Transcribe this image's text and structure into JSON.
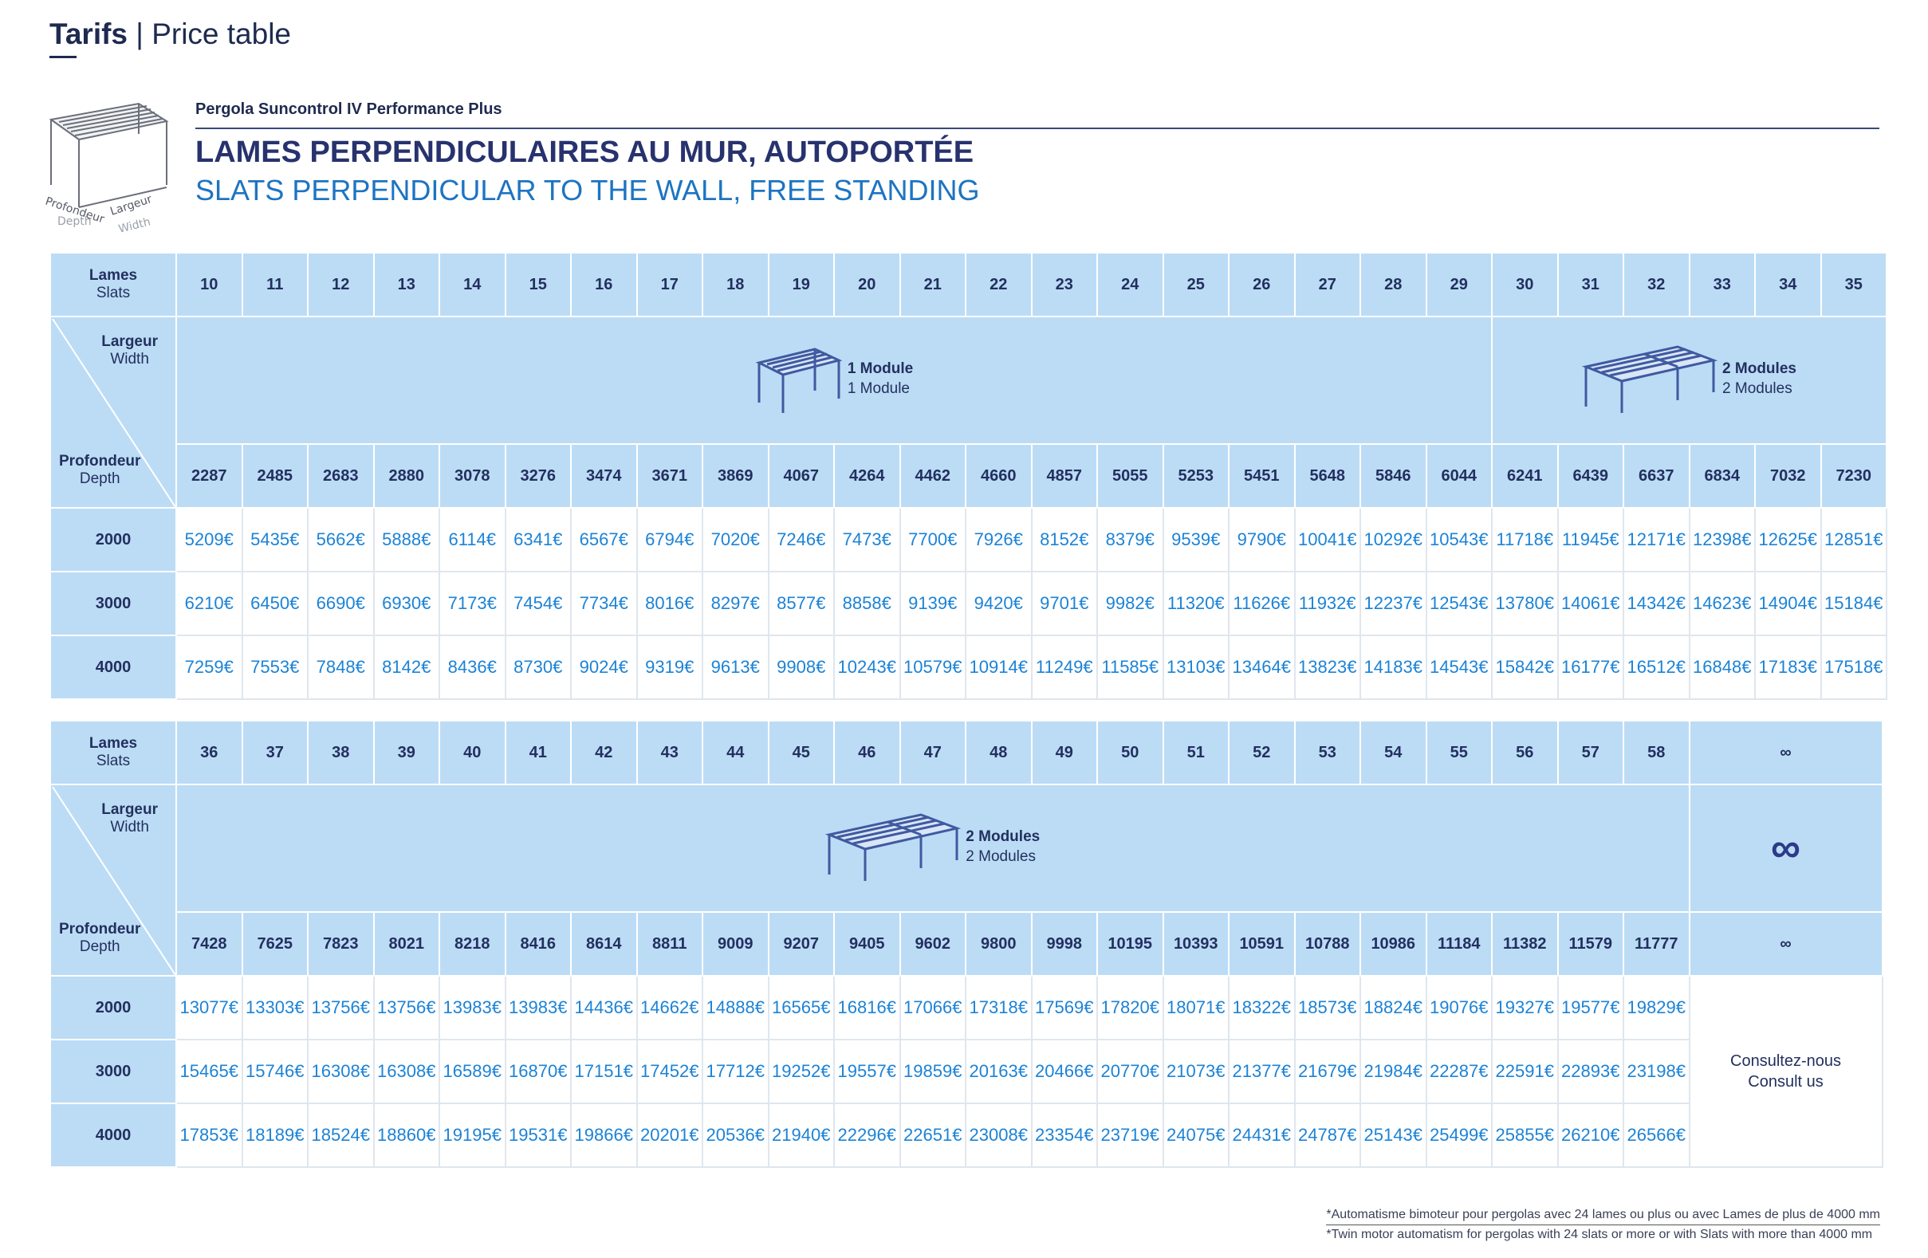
{
  "header": {
    "title_bold": "Tarifs",
    "title_sep": "|",
    "title_rest": "Price table"
  },
  "product": {
    "name": "Pergola Suncontrol IV Performance Plus",
    "title_fr": "LAMES PERPENDICULAIRES AU MUR, AUTOPORTÉE",
    "title_en": "SLATS PERPENDICULAR TO THE WALL, FREE STANDING",
    "thumb_labels": {
      "depth_fr": "Profondeur",
      "depth_en": "Depth",
      "width_fr": "Largeur",
      "width_en": "Width"
    }
  },
  "labels": {
    "slats_fr": "Lames",
    "slats_en": "Slats",
    "width_fr": "Largeur",
    "width_en": "Width",
    "depth_fr": "Profondeur",
    "depth_en": "Depth",
    "module1_fr": "1 Module",
    "module1_en": "1 Module",
    "module2_fr": "2 Modules",
    "module2_en": "2 Modules",
    "infinity": "∞",
    "consult_fr": "Consultez-nous",
    "consult_en": "Consult us"
  },
  "table1": {
    "slats": [
      "10",
      "11",
      "12",
      "13",
      "14",
      "15",
      "16",
      "17",
      "18",
      "19",
      "20",
      "21",
      "22",
      "23",
      "24",
      "25",
      "26",
      "27",
      "28",
      "29",
      "30",
      "31",
      "32",
      "33",
      "34",
      "35"
    ],
    "widths": [
      "2287",
      "2485",
      "2683",
      "2880",
      "3078",
      "3276",
      "3474",
      "3671",
      "3869",
      "4067",
      "4264",
      "4462",
      "4660",
      "4857",
      "5055",
      "5253",
      "5451",
      "5648",
      "5846",
      "6044",
      "6241",
      "6439",
      "6637",
      "6834",
      "7032",
      "7230"
    ],
    "rows": [
      {
        "depth": "2000",
        "prices": [
          "5209€",
          "5435€",
          "5662€",
          "5888€",
          "6114€",
          "6341€",
          "6567€",
          "6794€",
          "7020€",
          "7246€",
          "7473€",
          "7700€",
          "7926€",
          "8152€",
          "8379€",
          "9539€",
          "9790€",
          "10041€",
          "10292€",
          "10543€",
          "11718€",
          "11945€",
          "12171€",
          "12398€",
          "12625€",
          "12851€"
        ]
      },
      {
        "depth": "3000",
        "prices": [
          "6210€",
          "6450€",
          "6690€",
          "6930€",
          "7173€",
          "7454€",
          "7734€",
          "8016€",
          "8297€",
          "8577€",
          "8858€",
          "9139€",
          "9420€",
          "9701€",
          "9982€",
          "11320€",
          "11626€",
          "11932€",
          "12237€",
          "12543€",
          "13780€",
          "14061€",
          "14342€",
          "14623€",
          "14904€",
          "15184€"
        ]
      },
      {
        "depth": "4000",
        "prices": [
          "7259€",
          "7553€",
          "7848€",
          "8142€",
          "8436€",
          "8730€",
          "9024€",
          "9319€",
          "9613€",
          "9908€",
          "10243€",
          "10579€",
          "10914€",
          "11249€",
          "11585€",
          "13103€",
          "13464€",
          "13823€",
          "14183€",
          "14543€",
          "15842€",
          "16177€",
          "16512€",
          "16848€",
          "17183€",
          "17518€"
        ]
      }
    ]
  },
  "table2": {
    "slats": [
      "36",
      "37",
      "38",
      "39",
      "40",
      "41",
      "42",
      "43",
      "44",
      "45",
      "46",
      "47",
      "48",
      "49",
      "50",
      "51",
      "52",
      "53",
      "54",
      "55",
      "56",
      "57",
      "58"
    ],
    "widths": [
      "7428",
      "7625",
      "7823",
      "8021",
      "8218",
      "8416",
      "8614",
      "8811",
      "9009",
      "9207",
      "9405",
      "9602",
      "9800",
      "9998",
      "10195",
      "10393",
      "10591",
      "10788",
      "10986",
      "11184",
      "11382",
      "11579",
      "11777"
    ],
    "rows": [
      {
        "depth": "2000",
        "prices": [
          "13077€",
          "13303€",
          "13756€",
          "13756€",
          "13983€",
          "13983€",
          "14436€",
          "14662€",
          "14888€",
          "16565€",
          "16816€",
          "17066€",
          "17318€",
          "17569€",
          "17820€",
          "18071€",
          "18322€",
          "18573€",
          "18824€",
          "19076€",
          "19327€",
          "19577€",
          "19829€"
        ]
      },
      {
        "depth": "3000",
        "prices": [
          "15465€",
          "15746€",
          "16308€",
          "16308€",
          "16589€",
          "16870€",
          "17151€",
          "17452€",
          "17712€",
          "19252€",
          "19557€",
          "19859€",
          "20163€",
          "20466€",
          "20770€",
          "21073€",
          "21377€",
          "21679€",
          "21984€",
          "22287€",
          "22591€",
          "22893€",
          "23198€"
        ]
      },
      {
        "depth": "4000",
        "prices": [
          "17853€",
          "18189€",
          "18524€",
          "18860€",
          "19195€",
          "19531€",
          "19866€",
          "20201€",
          "20536€",
          "21940€",
          "22296€",
          "22651€",
          "23008€",
          "23354€",
          "23719€",
          "24075€",
          "24431€",
          "24787€",
          "25143€",
          "25499€",
          "25855€",
          "26210€",
          "26566€"
        ]
      }
    ]
  },
  "footnote": {
    "fr": "*Automatisme bimoteur pour pergolas avec 24 lames ou plus ou avec Lames de plus de 4000 mm",
    "en": "*Twin motor automatism for pergolas with 24 slats or more or with Slats with more than 4000 mm"
  },
  "colors": {
    "header_bg": "#bcdcf6",
    "price_text": "#1c83d6",
    "title_navy": "#27326e",
    "title_blue": "#1d74c2"
  }
}
